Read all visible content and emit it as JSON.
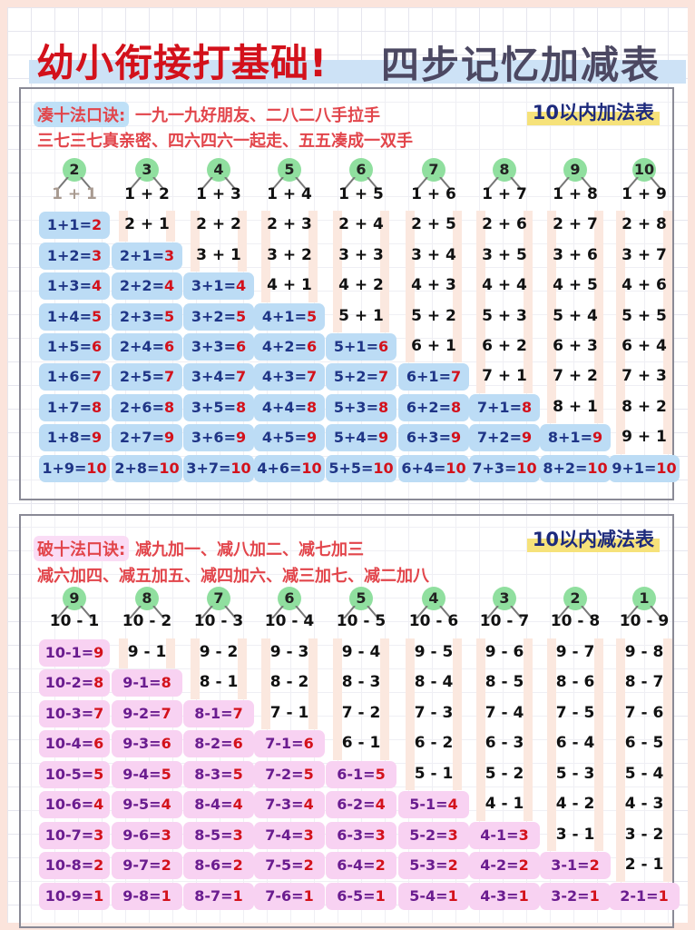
{
  "title": {
    "part1": "幼小衔接打基础!",
    "part2": "四步记忆加减表"
  },
  "addition": {
    "rule_label": "凑十法口诀:",
    "rule_line1": "一九一九好朋友、二八二八手拉手",
    "rule_line2": "三七三七真亲密、四六四六一起走、五五凑成一双手",
    "tag": "10以内加法表",
    "colors": {
      "pill": "#bcdcf5",
      "text": "#1f3586",
      "answer": "#d3111b",
      "circle": "#90df9f"
    },
    "columns": [
      {
        "top": "2",
        "plain": [
          "1 + 1"
        ],
        "solved": [
          "1+1=2",
          "1+2=3",
          "1+3=4",
          "1+4=5",
          "1+5=6",
          "1+6=7",
          "1+7=8",
          "1+8=9",
          "1+9=10"
        ]
      },
      {
        "top": "3",
        "plain": [
          "1 + 2",
          "2 + 1"
        ],
        "solved": [
          "2+1=3",
          "2+2=4",
          "2+3=5",
          "2+4=6",
          "2+5=7",
          "2+6=8",
          "2+7=9",
          "2+8=10"
        ]
      },
      {
        "top": "4",
        "plain": [
          "1 + 3",
          "2 + 2",
          "3 + 1"
        ],
        "solved": [
          "3+1=4",
          "3+2=5",
          "3+3=6",
          "3+4=7",
          "3+5=8",
          "3+6=9",
          "3+7=10"
        ]
      },
      {
        "top": "5",
        "plain": [
          "1 + 4",
          "2 + 3",
          "3 + 2",
          "4 + 1"
        ],
        "solved": [
          "4+1=5",
          "4+2=6",
          "4+3=7",
          "4+4=8",
          "4+5=9",
          "4+6=10"
        ]
      },
      {
        "top": "6",
        "plain": [
          "1 + 5",
          "2 + 4",
          "3 + 3",
          "4 + 2",
          "5 + 1"
        ],
        "solved": [
          "5+1=6",
          "5+2=7",
          "5+3=8",
          "5+4=9",
          "5+5=10"
        ]
      },
      {
        "top": "7",
        "plain": [
          "1 + 6",
          "2 + 5",
          "3 + 4",
          "4 + 3",
          "5 + 2",
          "6 + 1"
        ],
        "solved": [
          "6+1=7",
          "6+2=8",
          "6+3=9",
          "6+4=10"
        ]
      },
      {
        "top": "8",
        "plain": [
          "1 + 7",
          "2 + 6",
          "3 + 5",
          "4 + 4",
          "5 + 3",
          "6 + 2",
          "7 + 1"
        ],
        "solved": [
          "7+1=8",
          "7+2=9",
          "7+3=10"
        ]
      },
      {
        "top": "9",
        "plain": [
          "1 + 8",
          "2 + 7",
          "3 + 6",
          "4 + 5",
          "5 + 4",
          "6 + 3",
          "7 + 2",
          "8 + 1"
        ],
        "solved": [
          "8+1=9",
          "8+2=10"
        ]
      },
      {
        "top": "10",
        "plain": [
          "1 + 9",
          "2 + 8",
          "3 + 7",
          "4 + 6",
          "5 + 5",
          "6 + 4",
          "7 + 3",
          "8 + 2",
          "9 + 1"
        ],
        "solved": [
          "9+1=10"
        ]
      }
    ]
  },
  "subtraction": {
    "rule_label": "破十法口诀:",
    "rule_line1": "减九加一、减八加二、减七加三",
    "rule_line2": "减六加四、减五加五、减四加六、减三加七、减二加八",
    "tag": "10以内减法表",
    "colors": {
      "pill": "#f8d2f2",
      "text": "#6a1c8f",
      "answer": "#d3111b",
      "circle": "#90df9f"
    },
    "columns": [
      {
        "top": "9",
        "plain": [
          "10 - 1"
        ],
        "solved": [
          "10-1=9",
          "10-2=8",
          "10-3=7",
          "10-4=6",
          "10-5=5",
          "10-6=4",
          "10-7=3",
          "10-8=2",
          "10-9=1"
        ]
      },
      {
        "top": "8",
        "plain": [
          "10 - 2",
          "9 - 1"
        ],
        "solved": [
          "9-1=8",
          "9-2=7",
          "9-3=6",
          "9-4=5",
          "9-5=4",
          "9-6=3",
          "9-7=2",
          "9-8=1"
        ]
      },
      {
        "top": "7",
        "plain": [
          "10 - 3",
          "9 - 2",
          "8 - 1"
        ],
        "solved": [
          "8-1=7",
          "8-2=6",
          "8-3=5",
          "8-4=4",
          "8-5=3",
          "8-6=2",
          "8-7=1"
        ]
      },
      {
        "top": "6",
        "plain": [
          "10 - 4",
          "9 - 3",
          "8 - 2",
          "7 - 1"
        ],
        "solved": [
          "7-1=6",
          "7-2=5",
          "7-3=4",
          "7-4=3",
          "7-5=2",
          "7-6=1"
        ]
      },
      {
        "top": "5",
        "plain": [
          "10 - 5",
          "9 - 4",
          "8 - 3",
          "7 - 2",
          "6 - 1"
        ],
        "solved": [
          "6-1=5",
          "6-2=4",
          "6-3=3",
          "6-4=2",
          "6-5=1"
        ]
      },
      {
        "top": "4",
        "plain": [
          "10 - 6",
          "9 - 5",
          "8 - 4",
          "7 - 3",
          "6 - 2",
          "5 - 1"
        ],
        "solved": [
          "5-1=4",
          "5-2=3",
          "5-3=2",
          "5-4=1"
        ]
      },
      {
        "top": "3",
        "plain": [
          "10 - 7",
          "9 - 6",
          "8 - 5",
          "7 - 4",
          "6 - 3",
          "5 - 2",
          "4 - 1"
        ],
        "solved": [
          "4-1=3",
          "4-2=2",
          "4-3=1"
        ]
      },
      {
        "top": "2",
        "plain": [
          "10 - 8",
          "9 - 7",
          "8 - 6",
          "7 - 5",
          "6 - 4",
          "5 - 3",
          "4 - 2",
          "3 - 1"
        ],
        "solved": [
          "3-1=2",
          "3-2=1"
        ]
      },
      {
        "top": "1",
        "plain": [
          "10 - 9",
          "9 - 8",
          "8 - 7",
          "7 - 6",
          "6 - 5",
          "5 - 4",
          "4 - 3",
          "3 - 2",
          "2 - 1"
        ],
        "solved": [
          "2-1=1"
        ]
      }
    ]
  }
}
